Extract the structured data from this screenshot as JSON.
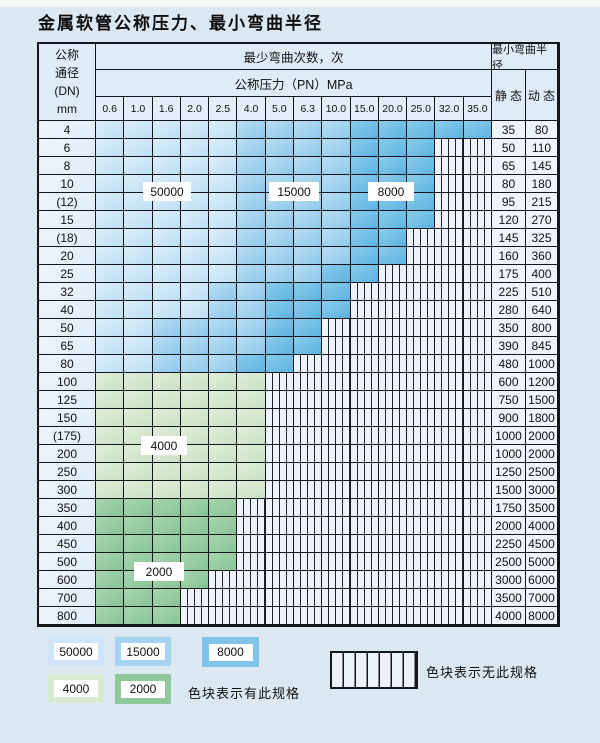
{
  "page": {
    "title": "金属软管公称压力、最小弯曲半径"
  },
  "table": {
    "header": {
      "dn_label_lines": [
        "公称",
        "通径",
        "(DN)",
        "mm"
      ],
      "bend_cycles_label": "最少弯曲次数，次",
      "pressure_label": "公称压力（PN）MPa",
      "pressure_values": [
        "0.6",
        "1.0",
        "1.6",
        "2.0",
        "2.5",
        "4.0",
        "5.0",
        "6.3",
        "10.0",
        "15.0",
        "20.0",
        "25.0",
        "32.0",
        "35.0"
      ],
      "radius_label": "最小弯曲半径",
      "static_label": "静 态",
      "dynamic_label": "动 态"
    },
    "cell_legend_key": {
      "L": "50000次",
      "M": "15000次",
      "D": "8000次",
      "G": "4000次",
      "E": "2000次",
      "X": "无此规格"
    },
    "rows": [
      {
        "dn": "4",
        "cells": "LLLLLMMMMDDDDD",
        "static": "35",
        "dynamic": "80"
      },
      {
        "dn": "6",
        "cells": "LLLLLMMMMDDDXX",
        "static": "50",
        "dynamic": "110"
      },
      {
        "dn": "8",
        "cells": "LLLLLMMMMDDDXX",
        "static": "65",
        "dynamic": "145"
      },
      {
        "dn": "10",
        "cells": "LLLLLMMMMDDDXX",
        "static": "80",
        "dynamic": "180"
      },
      {
        "dn": "(12)",
        "cells": "LLLLLMMMMDDDXX",
        "static": "95",
        "dynamic": "215"
      },
      {
        "dn": "15",
        "cells": "LLLLLMMMMDDDXX",
        "static": "120",
        "dynamic": "270"
      },
      {
        "dn": "(18)",
        "cells": "LLLLLMMMMDDXXX",
        "static": "145",
        "dynamic": "325"
      },
      {
        "dn": "20",
        "cells": "LLLLLMMMMDDXXX",
        "static": "160",
        "dynamic": "360"
      },
      {
        "dn": "25",
        "cells": "LLLLLMMMDDXXXX",
        "static": "175",
        "dynamic": "400"
      },
      {
        "dn": "32",
        "cells": "LLLLMMDDDXXXXX",
        "static": "225",
        "dynamic": "510"
      },
      {
        "dn": "40",
        "cells": "LLLLMMDDDXXXXX",
        "static": "280",
        "dynamic": "640"
      },
      {
        "dn": "50",
        "cells": "LLMMMMDDXXXXXX",
        "static": "350",
        "dynamic": "800"
      },
      {
        "dn": "65",
        "cells": "LLMMMMDDXXXXXX",
        "static": "390",
        "dynamic": "845"
      },
      {
        "dn": "80",
        "cells": "LLMMMDDXXXXXXX",
        "static": "480",
        "dynamic": "1000"
      },
      {
        "dn": "100",
        "cells": "GGGGGGXXXXXXXX",
        "static": "600",
        "dynamic": "1200"
      },
      {
        "dn": "125",
        "cells": "GGGGGGXXXXXXXX",
        "static": "750",
        "dynamic": "1500"
      },
      {
        "dn": "150",
        "cells": "GGGGGGXXXXXXXX",
        "static": "900",
        "dynamic": "1800"
      },
      {
        "dn": "(175)",
        "cells": "GGGGGGXXXXXXXX",
        "static": "1000",
        "dynamic": "2000"
      },
      {
        "dn": "200",
        "cells": "GGGGGGXXXXXXXX",
        "static": "1000",
        "dynamic": "2000"
      },
      {
        "dn": "250",
        "cells": "GGGGGGXXXXXXXX",
        "static": "1250",
        "dynamic": "2500"
      },
      {
        "dn": "300",
        "cells": "GGGGGGXXXXXXXX",
        "static": "1500",
        "dynamic": "3000"
      },
      {
        "dn": "350",
        "cells": "EEEEEXXXXXXXXX",
        "static": "1750",
        "dynamic": "3500"
      },
      {
        "dn": "400",
        "cells": "EEEEEXXXXXXXXX",
        "static": "2000",
        "dynamic": "4000"
      },
      {
        "dn": "450",
        "cells": "EEEEEXXXXXXXXX",
        "static": "2250",
        "dynamic": "4500"
      },
      {
        "dn": "500",
        "cells": "EEEEEXXXXXXXXX",
        "static": "2500",
        "dynamic": "5000"
      },
      {
        "dn": "600",
        "cells": "EEEEXXXXXXXXXX",
        "static": "3000",
        "dynamic": "6000"
      },
      {
        "dn": "700",
        "cells": "EEEXXXXXXXXXXX",
        "static": "3500",
        "dynamic": "7000"
      },
      {
        "dn": "800",
        "cells": "EEEXXXXXXXXXXX",
        "static": "4000",
        "dynamic": "8000"
      }
    ],
    "overlay_labels": [
      {
        "text": "50000"
      },
      {
        "text": "15000"
      },
      {
        "text": "8000"
      },
      {
        "text": "4000"
      },
      {
        "text": "2000"
      }
    ]
  },
  "legend": {
    "items": [
      {
        "label": "50000",
        "color": "#cfe5f7"
      },
      {
        "label": "15000",
        "color": "#a5d3f0"
      },
      {
        "label": "8000",
        "color": "#7fc3e9"
      },
      {
        "label": "4000",
        "color": "#d9ead2"
      },
      {
        "label": "2000",
        "color": "#8fc89b"
      }
    ],
    "has_spec_note": "色块表示有此规格",
    "no_spec_note": "色块表示无此规格"
  },
  "colors": {
    "page_background": "#dbe7f1",
    "band_50000": "#cfe5f7",
    "band_15000": "#a5d3f0",
    "band_8000": "#6fbce5",
    "band_4000": "#d6e8d0",
    "band_2000": "#93c99e",
    "no_spec_background": "#edf3fa",
    "grid_line": "#15151c"
  }
}
